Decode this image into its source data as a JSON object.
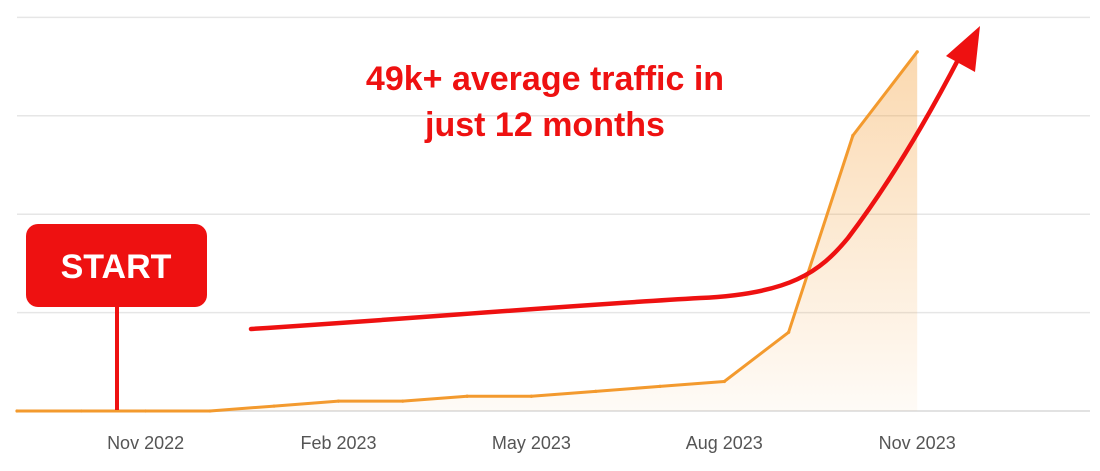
{
  "chart_data": {
    "type": "area",
    "title": "",
    "xlabel": "",
    "ylabel": "",
    "x_tick_labels": [
      "Nov 2022",
      "Feb 2023",
      "May 2023",
      "Aug 2023",
      "Nov 2023"
    ],
    "x": [
      "2022-09",
      "2022-10",
      "2022-11",
      "2022-12",
      "2023-01",
      "2023-02",
      "2023-03",
      "2023-04",
      "2023-05",
      "2023-06",
      "2023-07",
      "2023-08",
      "2023-09",
      "2023-10",
      "2023-11"
    ],
    "series": [
      {
        "values": [
          0,
          0,
          0,
          0,
          1,
          2,
          2,
          3,
          3,
          4,
          5,
          6,
          16,
          56,
          73
        ],
        "color": "#f39a2e"
      }
    ],
    "ylim": [
      0,
      82
    ],
    "y_gridlines": [
      0,
      20,
      40,
      60,
      80
    ],
    "grid": true,
    "y_axis_labels_shown": false,
    "fill_gradient": true,
    "annotations": {
      "callout_lines": [
        "49k+ average traffic in",
        "just 12 months"
      ],
      "start_label": "START",
      "growth_arrow": true,
      "accent_color": "#ee1111"
    }
  }
}
